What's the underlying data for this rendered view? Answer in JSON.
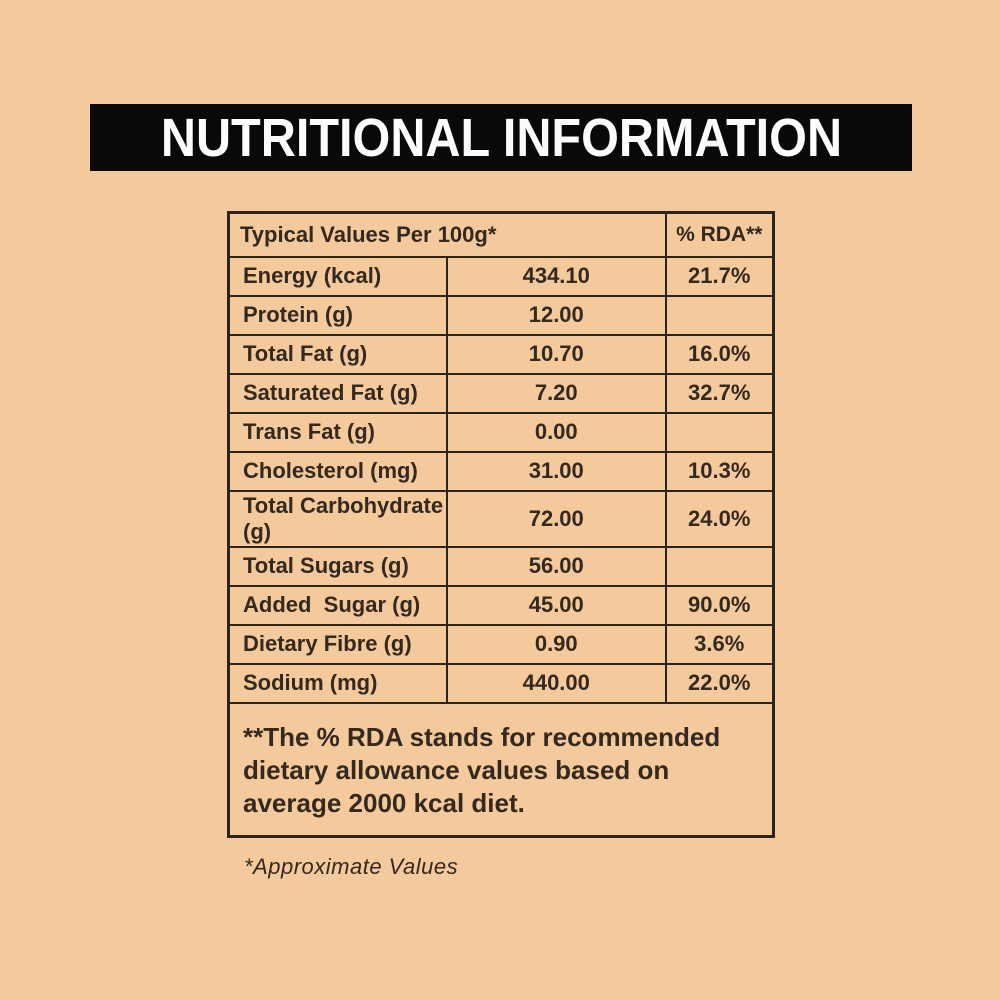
{
  "colors": {
    "background": "#F4C99C",
    "title_bar_background": "#0A0908",
    "title_text": "#FCFCFC",
    "table_border": "#2B241D",
    "table_text": "#33291E"
  },
  "title_bar": {
    "title": "NUTRITIONAL INFORMATION"
  },
  "table": {
    "header": {
      "col_label": "Typical Values Per 100g*",
      "col_rda": "% RDA**"
    },
    "rows": [
      {
        "label": "Energy (kcal)",
        "value": "434.10",
        "rda": "21.7%"
      },
      {
        "label": "Protein (g)",
        "value": "12.00",
        "rda": ""
      },
      {
        "label": "Total Fat (g)",
        "value": "10.70",
        "rda": "16.0%"
      },
      {
        "label": "Saturated Fat (g)",
        "value": "7.20",
        "rda": "32.7%"
      },
      {
        "label": "Trans Fat (g)",
        "value": "0.00",
        "rda": ""
      },
      {
        "label": "Cholesterol (mg)",
        "value": "31.00",
        "rda": "10.3%"
      },
      {
        "label": "Total Carbohydrate (g)",
        "value": "72.00",
        "rda": "24.0%"
      },
      {
        "label": "Total Sugars (g)",
        "value": "56.00",
        "rda": ""
      },
      {
        "label": "Added  Sugar (g)",
        "value": "45.00",
        "rda": "90.0%"
      },
      {
        "label": "Dietary Fibre (g)",
        "value": "0.90",
        "rda": "3.6%"
      },
      {
        "label": "Sodium (mg)",
        "value": "440.00",
        "rda": "22.0%"
      }
    ],
    "note": "**The % RDA stands for recommended dietary allowance values based on average 2000 kcal diet."
  },
  "footnote": "*Approximate Values"
}
